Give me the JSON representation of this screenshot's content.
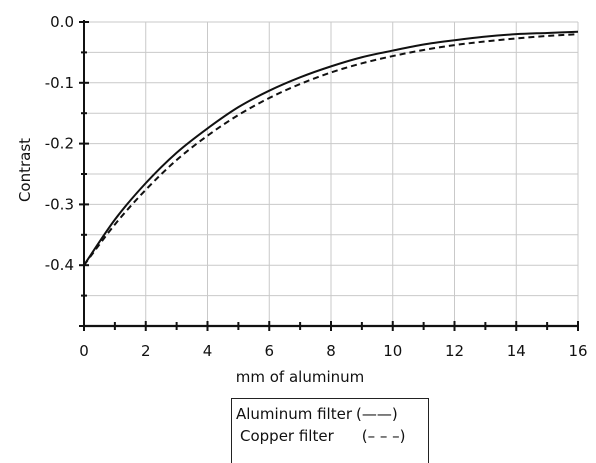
{
  "chart_data": {
    "type": "line",
    "title": "",
    "xlabel": "mm of aluminum",
    "ylabel": "Contrast",
    "xlim": [
      0,
      16
    ],
    "ylim": [
      -0.5,
      0.0
    ],
    "x_ticks": [
      0,
      2,
      4,
      6,
      8,
      10,
      12,
      14,
      16
    ],
    "x_tick_labels": [
      "0",
      "2",
      "4",
      "6",
      "8",
      "10",
      "12",
      "14",
      "16"
    ],
    "y_ticks": [
      0.0,
      -0.1,
      -0.2,
      -0.3,
      -0.4
    ],
    "y_tick_labels": [
      "0.0",
      "-0.1",
      "-0.2",
      "-0.3",
      "-0.4"
    ],
    "grid": true,
    "legend_position": "below",
    "series": [
      {
        "name": "Aluminum filter",
        "legend_key": "(——)",
        "style": "solid",
        "color": "#111111",
        "x": [
          0,
          1,
          2,
          3,
          4,
          5,
          6,
          7,
          8,
          9,
          10,
          11,
          12,
          13,
          14,
          15,
          16
        ],
        "y": [
          -0.4,
          -0.325,
          -0.265,
          -0.215,
          -0.175,
          -0.14,
          -0.113,
          -0.091,
          -0.073,
          -0.058,
          -0.047,
          -0.037,
          -0.03,
          -0.024,
          -0.02,
          -0.018,
          -0.016
        ]
      },
      {
        "name": "Copper filter",
        "legend_key": "(– – –)",
        "style": "dashed",
        "color": "#111111",
        "x": [
          0,
          1,
          2,
          3,
          4,
          5,
          6,
          7,
          8,
          9,
          10,
          11,
          12,
          13,
          14,
          15,
          16
        ],
        "y": [
          -0.4,
          -0.333,
          -0.276,
          -0.227,
          -0.187,
          -0.153,
          -0.125,
          -0.102,
          -0.083,
          -0.068,
          -0.056,
          -0.046,
          -0.038,
          -0.032,
          -0.027,
          -0.023,
          -0.02
        ]
      }
    ]
  }
}
